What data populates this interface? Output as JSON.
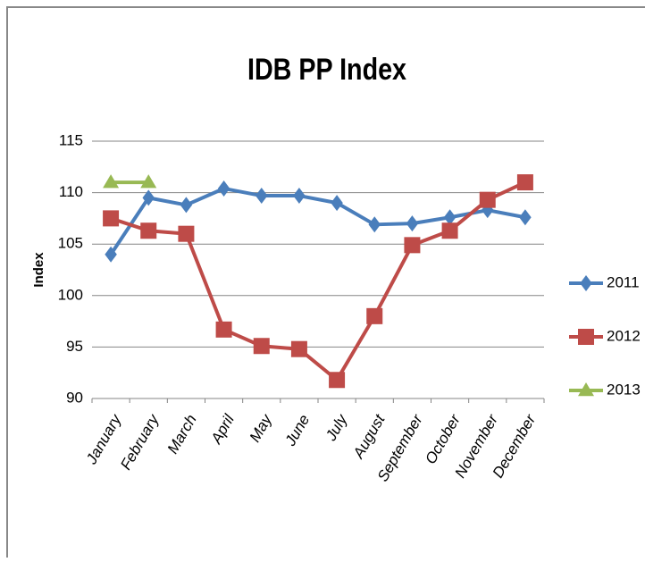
{
  "chart_data": {
    "type": "line",
    "title": "IDB PP Index",
    "y_label": "Index",
    "categories": [
      "January",
      "February",
      "March",
      "April",
      "May",
      "June",
      "July",
      "August",
      "September",
      "October",
      "November",
      "December"
    ],
    "series": [
      {
        "name": "2011",
        "color": "#4a7ebb",
        "marker": "diamond",
        "values": [
          104,
          109.5,
          108.8,
          110.4,
          109.7,
          109.7,
          109,
          106.9,
          107,
          107.6,
          108.3,
          107.6
        ]
      },
      {
        "name": "2012",
        "color": "#be4b48",
        "marker": "square",
        "values": [
          107.5,
          106.3,
          106,
          96.7,
          95.1,
          94.8,
          91.8,
          98,
          104.9,
          106.3,
          109.3,
          111
        ]
      },
      {
        "name": "2013",
        "color": "#98b954",
        "marker": "triangle",
        "values": [
          111,
          111,
          null,
          null,
          null,
          null,
          null,
          null,
          null,
          null,
          null,
          null
        ]
      }
    ],
    "ylim": [
      90,
      115
    ],
    "yticks": [
      90,
      95,
      100,
      105,
      110,
      115
    ],
    "grid": true,
    "legend": "right"
  }
}
